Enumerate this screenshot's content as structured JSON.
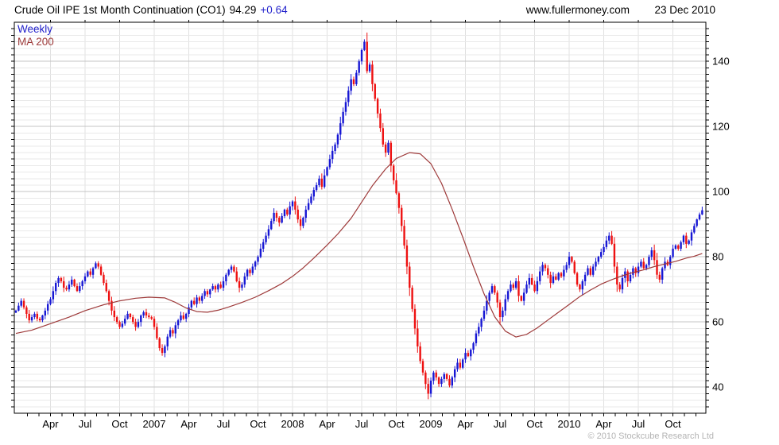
{
  "header": {
    "title": "Crude Oil IPE 1st Month Continuation (CO1)",
    "price": "94.29",
    "change": "+0.64",
    "website": "www.fullermoney.com",
    "date": "23 Dec 2010"
  },
  "legend": {
    "timeframe": "Weekly",
    "ma": "MA 200"
  },
  "footer": {
    "copyright": "© 2010 Stockcube Research Ltd"
  },
  "chart_data": {
    "type": "candlestick",
    "title": "Crude Oil IPE 1st Month Continuation (CO1)",
    "timeframe": "Weekly",
    "last_price": 94.29,
    "change": 0.64,
    "grid": "on",
    "legend_position": "top-left-inside",
    "y_axis": {
      "side": "right",
      "min": 32,
      "max": 152,
      "labels": [
        40,
        60,
        80,
        100,
        120,
        140
      ],
      "minor_step": 2,
      "major_step": 20
    },
    "x_axis": {
      "start_month": "2006-01",
      "months_total": 60,
      "minor_tick": "monthly",
      "gridline": "quarterly",
      "labels": [
        [
          3,
          "Apr"
        ],
        [
          6,
          "Jul"
        ],
        [
          9,
          "Oct"
        ],
        [
          12,
          "2007"
        ],
        [
          15,
          "Apr"
        ],
        [
          18,
          "Jul"
        ],
        [
          21,
          "Oct"
        ],
        [
          24,
          "2008"
        ],
        [
          27,
          "Apr"
        ],
        [
          30,
          "Jul"
        ],
        [
          33,
          "Oct"
        ],
        [
          36,
          "2009"
        ],
        [
          39,
          "Apr"
        ],
        [
          42,
          "Jul"
        ],
        [
          45,
          "Oct"
        ],
        [
          48,
          "2010"
        ],
        [
          51,
          "Apr"
        ],
        [
          54,
          "Jul"
        ],
        [
          57,
          "Oct"
        ]
      ]
    },
    "series": [
      {
        "name": "Weekly",
        "type": "candlestick",
        "weekly_closes": [
          63.5,
          65,
          66.5,
          64.5,
          62.5,
          60.5,
          61.5,
          62.5,
          61,
          60.5,
          62,
          63.5,
          65.5,
          67,
          69.5,
          72,
          73.5,
          72.5,
          70.5,
          70,
          71.5,
          73,
          71,
          69.5,
          71,
          72.5,
          74,
          75.5,
          74.5,
          76.5,
          78,
          77,
          74.5,
          72,
          69.5,
          66.5,
          63.5,
          61.5,
          60,
          58.5,
          59.5,
          61,
          62.5,
          61.5,
          60,
          58.5,
          60,
          62,
          63,
          62,
          61.5,
          61,
          58.5,
          55,
          52,
          50.5,
          52.5,
          55.5,
          57.5,
          56.5,
          59,
          60.5,
          62,
          61,
          62.5,
          64.5,
          66.5,
          65.5,
          67.5,
          66.5,
          68,
          69.5,
          68.5,
          70,
          71,
          70,
          71.5,
          70.5,
          72.5,
          74.5,
          76,
          77,
          75.5,
          72.5,
          70.5,
          71.5,
          74,
          76,
          75,
          77,
          78.5,
          80,
          82.5,
          84.5,
          86.5,
          88.5,
          91,
          93.5,
          92,
          90.5,
          92.5,
          94.5,
          93,
          95.5,
          97,
          94.5,
          91.5,
          89.5,
          92,
          94.5,
          96.5,
          98.5,
          100.5,
          102,
          104,
          101.5,
          105,
          107.5,
          110,
          112.5,
          114.5,
          117.5,
          121,
          124.5,
          127.5,
          131,
          134.5,
          133,
          136.5,
          140,
          143.5,
          146,
          137,
          139,
          133,
          128.5,
          124,
          119.5,
          114.5,
          112,
          115,
          108,
          103.5,
          99.5,
          95,
          89.5,
          83.5,
          77,
          70.5,
          64,
          58,
          52.5,
          48,
          44.5,
          41,
          38,
          42,
          44.5,
          43,
          41,
          42.5,
          44,
          42.5,
          40.5,
          43,
          45.5,
          47.5,
          46,
          48.5,
          50.5,
          49.5,
          51.5,
          53.5,
          56.5,
          58.5,
          61,
          63.5,
          66.5,
          69,
          71,
          69,
          66,
          61.5,
          63.5,
          67,
          69.5,
          71.5,
          70.5,
          72.5,
          68,
          66.5,
          69,
          71.5,
          73.5,
          71.5,
          69.5,
          72.5,
          75.5,
          77.5,
          76.5,
          74.5,
          72,
          74,
          73,
          75,
          74,
          76,
          77.5,
          80,
          78.5,
          75,
          71.5,
          70,
          72.5,
          74.5,
          76.5,
          74.5,
          77,
          78.5,
          80,
          81.5,
          83,
          85,
          86.5,
          84,
          77,
          71.5,
          70,
          73.5,
          75.5,
          72.5,
          74.5,
          76.5,
          75,
          77,
          78.5,
          76.5,
          77.5,
          80,
          82,
          79,
          74.5,
          73,
          76.5,
          78.5,
          77.5,
          80,
          82.5,
          83.5,
          82.5,
          84.5,
          86.5,
          84,
          85,
          87.5,
          89.5,
          91.5,
          93,
          94.29
        ]
      },
      {
        "name": "MA 200",
        "type": "line",
        "points": [
          [
            0,
            56.5
          ],
          [
            6,
            57.5
          ],
          [
            13,
            59.5
          ],
          [
            20,
            61.5
          ],
          [
            26,
            63.5
          ],
          [
            33,
            65.3
          ],
          [
            39,
            66.5
          ],
          [
            45,
            67.3
          ],
          [
            50,
            67.6
          ],
          [
            56,
            67.4
          ],
          [
            60,
            66
          ],
          [
            64,
            64.3
          ],
          [
            68,
            63.2
          ],
          [
            72,
            63
          ],
          [
            76,
            63.6
          ],
          [
            80,
            64.6
          ],
          [
            85,
            66
          ],
          [
            90,
            67.6
          ],
          [
            95,
            69.6
          ],
          [
            100,
            71.8
          ],
          [
            104,
            74
          ],
          [
            108,
            76.6
          ],
          [
            112,
            79.6
          ],
          [
            117,
            83.6
          ],
          [
            121,
            87
          ],
          [
            126,
            91.8
          ],
          [
            130,
            96.8
          ],
          [
            134,
            101.8
          ],
          [
            139,
            107
          ],
          [
            143,
            110.2
          ],
          [
            148,
            112
          ],
          [
            152,
            111.6
          ],
          [
            156,
            108.6
          ],
          [
            160,
            102.6
          ],
          [
            164,
            94.6
          ],
          [
            168,
            86
          ],
          [
            172,
            77
          ],
          [
            176,
            68.6
          ],
          [
            180,
            61.6
          ],
          [
            184,
            57.2
          ],
          [
            188,
            55.4
          ],
          [
            192,
            56.2
          ],
          [
            196,
            58.2
          ],
          [
            200,
            60.6
          ],
          [
            204,
            63
          ],
          [
            208,
            65.4
          ],
          [
            212,
            67.8
          ],
          [
            216,
            69.8
          ],
          [
            220,
            71.6
          ],
          [
            224,
            73
          ],
          [
            228,
            74.2
          ],
          [
            232,
            75.2
          ],
          [
            236,
            76
          ],
          [
            240,
            77
          ],
          [
            244,
            77.8
          ],
          [
            248,
            78.6
          ],
          [
            252,
            79.6
          ],
          [
            255,
            80.2
          ],
          [
            258,
            81
          ]
        ]
      }
    ],
    "colors": {
      "up_candle": "#1717d4",
      "down_candle": "#ee1111",
      "ma_line": "#9e3a3a",
      "grid_minor": "#e9e9e9",
      "grid_major": "#c5c5c5",
      "grid_vertical": "#e0e0e0",
      "frame": "#000000",
      "axis_text": "#000000",
      "header_change": "#2323cc",
      "legend_weekly": "#2323cc",
      "copyright_text": "#b3b3b3"
    }
  }
}
